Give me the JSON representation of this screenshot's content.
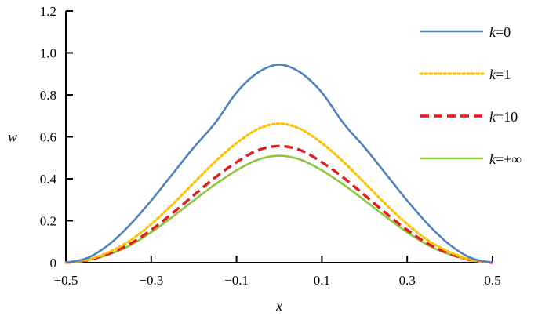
{
  "chart_data": {
    "type": "line",
    "title": "",
    "xlabel": "x",
    "ylabel": "w",
    "xlim": [
      -0.5,
      0.5
    ],
    "ylim": [
      0,
      1.2
    ],
    "xticks": [
      -0.5,
      -0.3,
      -0.1,
      0.1,
      0.3,
      0.5
    ],
    "xtick_labels": [
      "−0.5",
      "−0.3",
      "−0.1",
      "0.1",
      "0.3",
      "0.5"
    ],
    "yticks": [
      0,
      0.2,
      0.4,
      0.6,
      0.8,
      1.0,
      1.2
    ],
    "ytick_labels": [
      "0",
      "0.2",
      "0.4",
      "0.6",
      "0.8",
      "1.0",
      "1.2"
    ],
    "grid": false,
    "legend_position": "top-right",
    "x": [
      -0.5,
      -0.45,
      -0.4,
      -0.35,
      -0.3,
      -0.25,
      -0.2,
      -0.15,
      -0.1,
      -0.05,
      0,
      0.05,
      0.1,
      0.15,
      0.2,
      0.25,
      0.3,
      0.35,
      0.4,
      0.45,
      0.5
    ],
    "series": [
      {
        "name": "k=0",
        "k_label": "k",
        "value_label": "=0",
        "color": "#4f81bd",
        "dash": "solid",
        "values": [
          0,
          0.022,
          0.085,
          0.18,
          0.296,
          0.423,
          0.55,
          0.666,
          0.811,
          0.906,
          0.944,
          0.906,
          0.811,
          0.666,
          0.55,
          0.423,
          0.296,
          0.18,
          0.085,
          0.022,
          0
        ]
      },
      {
        "name": "k=1",
        "k_label": "k",
        "value_label": "=1",
        "color": "#ffc000",
        "dash": "dotted",
        "values": [
          0,
          0.014,
          0.05,
          0.105,
          0.184,
          0.278,
          0.381,
          0.482,
          0.57,
          0.637,
          0.663,
          0.637,
          0.57,
          0.482,
          0.381,
          0.278,
          0.184,
          0.105,
          0.05,
          0.014,
          0
        ]
      },
      {
        "name": "k=10",
        "k_label": "k",
        "value_label": "=10",
        "color": "#e41a1c",
        "dash": "dashed",
        "values": [
          0,
          0.012,
          0.042,
          0.089,
          0.156,
          0.236,
          0.322,
          0.406,
          0.479,
          0.536,
          0.556,
          0.536,
          0.479,
          0.406,
          0.322,
          0.236,
          0.156,
          0.089,
          0.042,
          0.012,
          0
        ]
      },
      {
        "name": "k=+∞",
        "k_label": "k",
        "value_label": "=+∞",
        "color": "#8dc63f",
        "dash": "solid",
        "values": [
          0,
          0.011,
          0.039,
          0.082,
          0.145,
          0.219,
          0.297,
          0.373,
          0.44,
          0.491,
          0.51,
          0.491,
          0.44,
          0.373,
          0.297,
          0.219,
          0.145,
          0.082,
          0.039,
          0.011,
          0
        ]
      }
    ]
  }
}
